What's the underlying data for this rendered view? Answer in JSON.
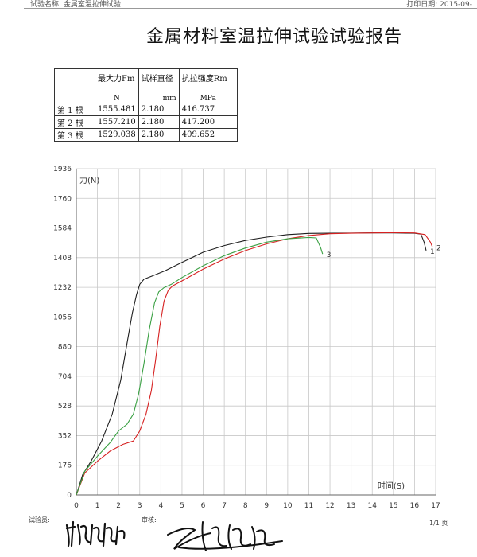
{
  "header": {
    "left_text": "试验名称: 金属室温拉伸试验",
    "right_text": "打印日期: 2015-09-"
  },
  "title": "金属材料室温拉伸试验试验报告",
  "table": {
    "columns": [
      "",
      "最大力Fm",
      "试样直径",
      "抗拉强度Rm"
    ],
    "units": [
      "",
      "N",
      "mm",
      "MPa"
    ],
    "rows": [
      [
        "第 1 根",
        "1555.481",
        "2.180",
        "416.737"
      ],
      [
        "第 2 根",
        "1557.210",
        "2.180",
        "417.200"
      ],
      [
        "第 3 根",
        "1529.038",
        "2.180",
        "409.652"
      ]
    ]
  },
  "chart_data": {
    "type": "line",
    "ylabel": "力(N)",
    "xlabel": "时间(S)",
    "xlim": [
      0,
      17
    ],
    "ylim": [
      0,
      1936
    ],
    "x_ticks": [
      "0",
      "1",
      "2",
      "3",
      "4",
      "5",
      "6",
      "7",
      "8",
      "9",
      "10",
      "11",
      "12",
      "13",
      "14",
      "15",
      "16",
      "17"
    ],
    "y_ticks": [
      "0",
      "176",
      "352",
      "528",
      "704",
      "880",
      "1056",
      "1232",
      "1408",
      "1584",
      "1760",
      "1936"
    ],
    "grid": true,
    "series": [
      {
        "name": "1",
        "color": "#1e1e1e",
        "x": [
          0,
          0.3,
          0.7,
          1.2,
          1.7,
          2.1,
          2.4,
          2.65,
          2.85,
          3.0,
          3.2,
          3.6,
          4.2,
          5.0,
          6.0,
          7.0,
          8.0,
          9.0,
          10.0,
          11.0,
          12.0,
          13.0,
          14.0,
          15.0,
          16.0,
          16.3,
          16.45,
          16.55
        ],
        "y": [
          0,
          120,
          200,
          320,
          480,
          680,
          900,
          1080,
          1190,
          1250,
          1280,
          1300,
          1330,
          1380,
          1440,
          1480,
          1510,
          1530,
          1545,
          1552,
          1553,
          1554,
          1555,
          1555,
          1553,
          1548,
          1500,
          1450
        ]
      },
      {
        "name": "2",
        "color": "#d62020",
        "x": [
          0,
          0.4,
          1.0,
          1.6,
          2.2,
          2.7,
          3.0,
          3.3,
          3.55,
          3.75,
          3.95,
          4.15,
          4.35,
          4.55,
          5.0,
          6.0,
          7.0,
          8.0,
          9.0,
          10.0,
          11.0,
          12.0,
          13.0,
          14.0,
          15.0,
          16.0,
          16.5,
          16.75,
          16.85
        ],
        "y": [
          0,
          130,
          200,
          260,
          300,
          320,
          380,
          480,
          620,
          800,
          1000,
          1150,
          1215,
          1240,
          1270,
          1340,
          1400,
          1450,
          1490,
          1520,
          1540,
          1550,
          1553,
          1555,
          1557,
          1555,
          1545,
          1500,
          1470
        ]
      },
      {
        "name": "3",
        "color": "#3aa043",
        "x": [
          0,
          0.4,
          1.0,
          1.6,
          2.0,
          2.4,
          2.7,
          2.95,
          3.2,
          3.45,
          3.7,
          3.9,
          4.15,
          4.5,
          5.0,
          6.0,
          7.0,
          8.0,
          9.0,
          10.0,
          11.0,
          11.35,
          11.55,
          11.65
        ],
        "y": [
          0,
          140,
          230,
          310,
          380,
          420,
          480,
          600,
          780,
          980,
          1140,
          1205,
          1230,
          1250,
          1290,
          1360,
          1420,
          1465,
          1500,
          1520,
          1528,
          1525,
          1470,
          1430
        ]
      }
    ]
  },
  "footer": {
    "tester_label": "试验员:",
    "reviewer_label": "审核:",
    "page": "1/1 页"
  }
}
